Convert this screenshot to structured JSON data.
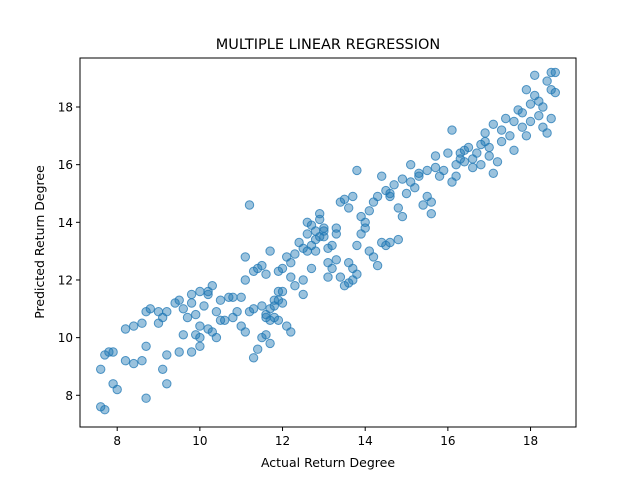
{
  "chart_data": {
    "type": "scatter",
    "title": "MULTIPLE LINEAR REGRESSION",
    "xlabel": "Actual Return Degree",
    "ylabel": "Predicted Return Degree",
    "xlim": [
      7.1,
      19.1
    ],
    "ylim": [
      6.9,
      19.7
    ],
    "xticks": [
      8,
      10,
      12,
      14,
      16,
      18
    ],
    "yticks": [
      8,
      10,
      12,
      14,
      16,
      18
    ],
    "grid": false,
    "color": "#1f77b4",
    "points": [
      [
        7.6,
        7.6
      ],
      [
        7.7,
        7.5
      ],
      [
        7.6,
        8.9
      ],
      [
        7.7,
        9.4
      ],
      [
        7.8,
        9.5
      ],
      [
        7.9,
        9.5
      ],
      [
        7.9,
        8.4
      ],
      [
        8.0,
        8.2
      ],
      [
        8.2,
        9.2
      ],
      [
        8.4,
        9.1
      ],
      [
        8.6,
        9.2
      ],
      [
        8.7,
        9.7
      ],
      [
        8.7,
        7.9
      ],
      [
        8.2,
        10.3
      ],
      [
        8.4,
        10.4
      ],
      [
        8.6,
        10.5
      ],
      [
        8.7,
        10.9
      ],
      [
        8.8,
        11.0
      ],
      [
        9.0,
        10.5
      ],
      [
        9.0,
        10.9
      ],
      [
        9.1,
        10.7
      ],
      [
        9.2,
        10.9
      ],
      [
        9.4,
        11.2
      ],
      [
        9.5,
        11.3
      ],
      [
        9.6,
        11.0
      ],
      [
        9.6,
        10.1
      ],
      [
        9.1,
        8.9
      ],
      [
        9.2,
        9.4
      ],
      [
        9.2,
        8.4
      ],
      [
        9.5,
        9.5
      ],
      [
        9.7,
        10.7
      ],
      [
        9.8,
        11.2
      ],
      [
        9.8,
        11.5
      ],
      [
        9.9,
        10.8
      ],
      [
        10.0,
        10.4
      ],
      [
        10.0,
        11.6
      ],
      [
        10.1,
        11.1
      ],
      [
        10.2,
        11.5
      ],
      [
        10.2,
        11.6
      ],
      [
        10.3,
        11.8
      ],
      [
        10.4,
        10.9
      ],
      [
        10.5,
        11.3
      ],
      [
        10.6,
        10.6
      ],
      [
        9.8,
        9.5
      ],
      [
        9.9,
        10.1
      ],
      [
        10.0,
        10.0
      ],
      [
        10.0,
        9.7
      ],
      [
        10.2,
        10.3
      ],
      [
        10.3,
        10.2
      ],
      [
        10.4,
        10.0
      ],
      [
        10.5,
        10.6
      ],
      [
        10.7,
        11.4
      ],
      [
        10.8,
        11.4
      ],
      [
        10.8,
        10.7
      ],
      [
        10.9,
        10.9
      ],
      [
        11.0,
        11.4
      ],
      [
        11.0,
        10.4
      ],
      [
        11.1,
        10.2
      ],
      [
        11.2,
        10.9
      ],
      [
        11.3,
        11.0
      ],
      [
        11.1,
        12.0
      ],
      [
        11.1,
        12.8
      ],
      [
        11.3,
        12.3
      ],
      [
        11.4,
        12.4
      ],
      [
        11.5,
        12.5
      ],
      [
        11.3,
        9.3
      ],
      [
        11.4,
        9.6
      ],
      [
        11.5,
        10.0
      ],
      [
        11.6,
        10.1
      ],
      [
        11.7,
        9.8
      ],
      [
        11.8,
        10.7
      ],
      [
        11.8,
        11.3
      ],
      [
        11.9,
        11.6
      ],
      [
        12.0,
        11.2
      ],
      [
        12.0,
        11.6
      ],
      [
        12.1,
        10.4
      ],
      [
        12.2,
        10.2
      ],
      [
        11.6,
        10.7
      ],
      [
        11.7,
        10.6
      ],
      [
        11.9,
        10.6
      ],
      [
        11.5,
        11.1
      ],
      [
        11.6,
        10.8
      ],
      [
        11.7,
        11.0
      ],
      [
        11.8,
        11.1
      ],
      [
        11.9,
        11.3
      ],
      [
        11.2,
        14.6
      ],
      [
        11.6,
        12.2
      ],
      [
        11.7,
        13.0
      ],
      [
        11.9,
        12.3
      ],
      [
        12.0,
        12.4
      ],
      [
        12.1,
        12.8
      ],
      [
        12.2,
        12.6
      ],
      [
        12.2,
        12.1
      ],
      [
        12.3,
        11.8
      ],
      [
        12.3,
        12.9
      ],
      [
        12.4,
        13.3
      ],
      [
        12.5,
        11.5
      ],
      [
        12.5,
        12.0
      ],
      [
        12.6,
        13.6
      ],
      [
        12.6,
        14.0
      ],
      [
        12.7,
        13.9
      ],
      [
        12.7,
        12.4
      ],
      [
        12.8,
        13.0
      ],
      [
        12.8,
        13.4
      ],
      [
        12.9,
        14.1
      ],
      [
        12.9,
        14.3
      ],
      [
        13.0,
        13.7
      ],
      [
        13.0,
        13.5
      ],
      [
        13.1,
        12.6
      ],
      [
        13.2,
        13.2
      ],
      [
        13.3,
        13.8
      ],
      [
        13.3,
        13.6
      ],
      [
        12.5,
        13.1
      ],
      [
        12.6,
        13.0
      ],
      [
        12.7,
        13.2
      ],
      [
        12.8,
        13.7
      ],
      [
        12.9,
        13.5
      ],
      [
        13.0,
        13.8
      ],
      [
        13.1,
        13.1
      ],
      [
        13.1,
        12.1
      ],
      [
        13.2,
        12.4
      ],
      [
        13.3,
        12.7
      ],
      [
        13.4,
        12.1
      ],
      [
        13.5,
        11.8
      ],
      [
        13.6,
        11.9
      ],
      [
        13.7,
        12.0
      ],
      [
        13.8,
        12.2
      ],
      [
        13.6,
        12.6
      ],
      [
        13.7,
        12.4
      ],
      [
        13.8,
        13.2
      ],
      [
        13.9,
        13.6
      ],
      [
        14.0,
        13.8
      ],
      [
        14.1,
        13.0
      ],
      [
        14.2,
        12.8
      ],
      [
        14.3,
        12.5
      ],
      [
        14.4,
        13.3
      ],
      [
        14.5,
        13.2
      ],
      [
        14.6,
        13.3
      ],
      [
        13.4,
        14.7
      ],
      [
        13.5,
        14.8
      ],
      [
        13.6,
        14.5
      ],
      [
        13.7,
        14.9
      ],
      [
        13.8,
        15.8
      ],
      [
        13.9,
        14.2
      ],
      [
        14.0,
        14.0
      ],
      [
        14.1,
        14.4
      ],
      [
        14.2,
        14.7
      ],
      [
        14.3,
        14.9
      ],
      [
        14.4,
        15.6
      ],
      [
        14.5,
        15.1
      ],
      [
        14.6,
        14.9
      ],
      [
        14.7,
        15.3
      ],
      [
        14.8,
        14.5
      ],
      [
        14.8,
        13.4
      ],
      [
        14.9,
        14.2
      ],
      [
        15.0,
        15.0
      ],
      [
        15.1,
        15.4
      ],
      [
        15.2,
        15.2
      ],
      [
        15.3,
        15.7
      ],
      [
        15.4,
        14.6
      ],
      [
        15.5,
        14.9
      ],
      [
        15.5,
        15.8
      ],
      [
        15.6,
        14.7
      ],
      [
        15.6,
        14.3
      ],
      [
        15.7,
        15.9
      ],
      [
        15.7,
        16.3
      ],
      [
        15.8,
        15.6
      ],
      [
        15.9,
        15.8
      ],
      [
        16.0,
        16.4
      ],
      [
        16.1,
        15.4
      ],
      [
        16.1,
        17.2
      ],
      [
        16.2,
        16.0
      ],
      [
        16.2,
        15.6
      ],
      [
        16.3,
        16.4
      ],
      [
        16.3,
        16.2
      ],
      [
        16.4,
        16.1
      ],
      [
        16.5,
        16.6
      ],
      [
        16.6,
        16.2
      ],
      [
        16.6,
        15.9
      ],
      [
        16.7,
        16.4
      ],
      [
        16.8,
        16.0
      ],
      [
        16.8,
        16.7
      ],
      [
        16.9,
        17.1
      ],
      [
        17.0,
        16.6
      ],
      [
        17.0,
        16.3
      ],
      [
        17.1,
        17.4
      ],
      [
        17.1,
        15.7
      ],
      [
        17.2,
        16.1
      ],
      [
        17.3,
        17.2
      ],
      [
        17.3,
        16.8
      ],
      [
        17.4,
        17.6
      ],
      [
        17.5,
        17.0
      ],
      [
        17.6,
        16.5
      ],
      [
        17.6,
        17.5
      ],
      [
        17.7,
        17.9
      ],
      [
        17.8,
        17.3
      ],
      [
        17.9,
        17.0
      ],
      [
        18.0,
        17.5
      ],
      [
        18.0,
        18.1
      ],
      [
        18.1,
        18.4
      ],
      [
        18.2,
        17.7
      ],
      [
        18.2,
        18.2
      ],
      [
        18.3,
        18.0
      ],
      [
        18.3,
        17.3
      ],
      [
        18.4,
        18.9
      ],
      [
        18.4,
        17.1
      ],
      [
        18.5,
        17.6
      ],
      [
        18.5,
        18.6
      ],
      [
        18.6,
        19.2
      ],
      [
        18.6,
        18.5
      ],
      [
        18.1,
        19.1
      ],
      [
        18.5,
        19.2
      ],
      [
        17.9,
        18.6
      ],
      [
        17.8,
        17.8
      ],
      [
        16.4,
        16.5
      ],
      [
        16.9,
        16.8
      ],
      [
        15.3,
        15.6
      ],
      [
        15.1,
        16.0
      ],
      [
        14.9,
        15.5
      ],
      [
        14.6,
        15.0
      ]
    ]
  }
}
